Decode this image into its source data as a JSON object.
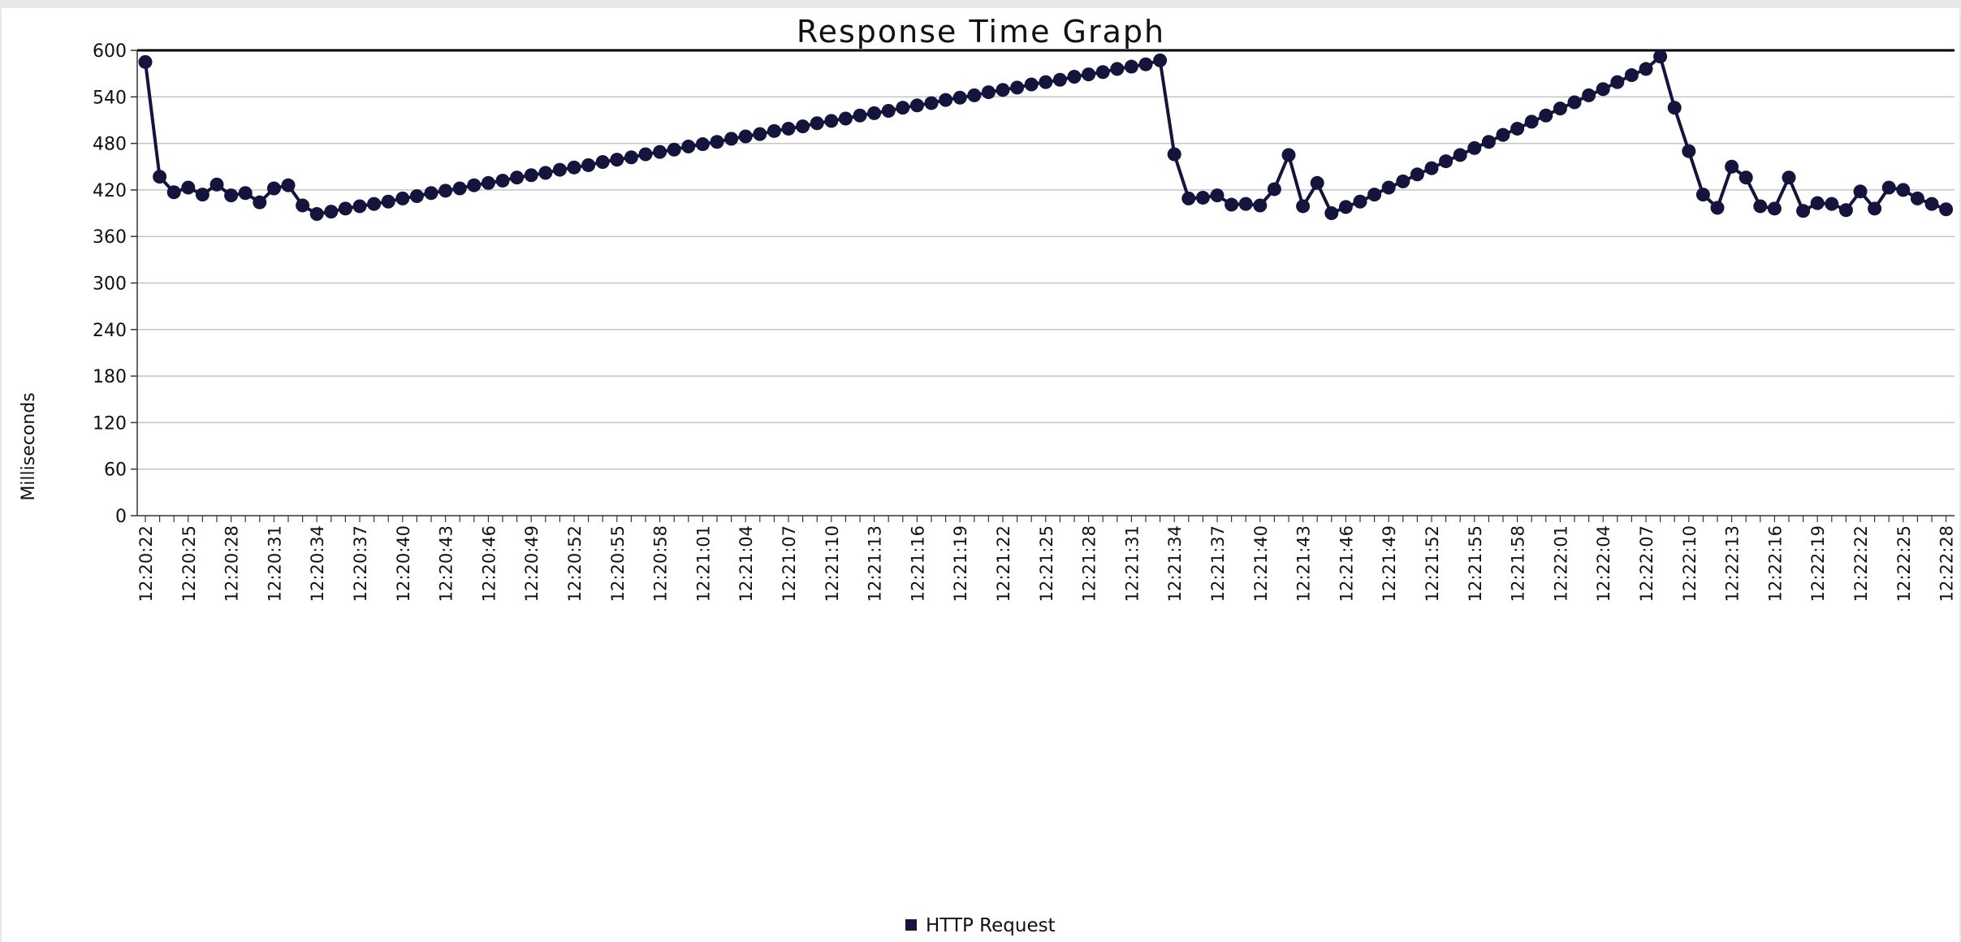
{
  "chart_data": {
    "type": "line",
    "title": "Response Time Graph",
    "ylabel": "Milliseconds",
    "xlabel": "",
    "ylim": [
      0,
      600
    ],
    "yticks": [
      0,
      60,
      120,
      180,
      240,
      300,
      360,
      420,
      480,
      540,
      600
    ],
    "grid": true,
    "legend_placement": "bottom-center",
    "x": [
      "12:20:22",
      "12:20:23",
      "12:20:24",
      "12:20:25",
      "12:20:26",
      "12:20:27",
      "12:20:28",
      "12:20:29",
      "12:20:30",
      "12:20:31",
      "12:20:32",
      "12:20:33",
      "12:20:34",
      "12:20:35",
      "12:20:36",
      "12:20:37",
      "12:20:38",
      "12:20:39",
      "12:20:40",
      "12:20:41",
      "12:20:42",
      "12:20:43",
      "12:20:44",
      "12:20:45",
      "12:20:46",
      "12:20:47",
      "12:20:48",
      "12:20:49",
      "12:20:50",
      "12:20:51",
      "12:20:52",
      "12:20:53",
      "12:20:54",
      "12:20:55",
      "12:20:56",
      "12:20:57",
      "12:20:58",
      "12:20:59",
      "12:21:00",
      "12:21:01",
      "12:21:02",
      "12:21:03",
      "12:21:04",
      "12:21:05",
      "12:21:06",
      "12:21:07",
      "12:21:08",
      "12:21:09",
      "12:21:10",
      "12:21:11",
      "12:21:12",
      "12:21:13",
      "12:21:14",
      "12:21:15",
      "12:21:16",
      "12:21:17",
      "12:21:18",
      "12:21:19",
      "12:21:20",
      "12:21:21",
      "12:21:22",
      "12:21:23",
      "12:21:24",
      "12:21:25",
      "12:21:26",
      "12:21:27",
      "12:21:28",
      "12:21:29",
      "12:21:30",
      "12:21:31",
      "12:21:32",
      "12:21:33",
      "12:21:34",
      "12:21:35",
      "12:21:36",
      "12:21:37",
      "12:21:38",
      "12:21:39",
      "12:21:40",
      "12:21:41",
      "12:21:42",
      "12:21:43",
      "12:21:44",
      "12:21:45",
      "12:21:46",
      "12:21:47",
      "12:21:48",
      "12:21:49",
      "12:21:50",
      "12:21:51",
      "12:21:52",
      "12:21:53",
      "12:21:54",
      "12:21:55",
      "12:21:56",
      "12:21:57",
      "12:21:58",
      "12:21:59",
      "12:22:00",
      "12:22:01",
      "12:22:02",
      "12:22:03",
      "12:22:04",
      "12:22:05",
      "12:22:06",
      "12:22:07",
      "12:22:08",
      "12:22:09",
      "12:22:10",
      "12:22:11",
      "12:22:12",
      "12:22:13",
      "12:22:14",
      "12:22:15",
      "12:22:16",
      "12:22:17",
      "12:22:18",
      "12:22:19",
      "12:22:20",
      "12:22:21",
      "12:22:22",
      "12:22:23",
      "12:22:24",
      "12:22:25",
      "12:22:26",
      "12:22:27",
      "12:22:28"
    ],
    "series": [
      {
        "name": "HTTP Request",
        "color": "#14143c",
        "values": [
          585,
          437,
          417,
          423,
          414,
          427,
          413,
          416,
          404,
          422,
          426,
          400,
          389,
          392,
          396,
          399,
          402,
          405,
          409,
          412,
          416,
          419,
          422,
          426,
          429,
          432,
          436,
          439,
          442,
          446,
          449,
          452,
          456,
          459,
          462,
          466,
          469,
          472,
          476,
          479,
          482,
          486,
          489,
          492,
          496,
          499,
          502,
          506,
          509,
          512,
          516,
          519,
          522,
          526,
          529,
          532,
          536,
          539,
          542,
          546,
          549,
          552,
          556,
          559,
          562,
          566,
          569,
          572,
          576,
          579,
          582,
          587,
          466,
          409,
          410,
          413,
          401,
          402,
          400,
          421,
          465,
          399,
          429,
          390,
          398,
          405,
          414,
          423,
          431,
          440,
          448,
          457,
          465,
          474,
          482,
          491,
          499,
          508,
          516,
          525,
          533,
          542,
          550,
          559,
          568,
          576,
          592,
          526,
          470,
          414,
          397,
          450,
          436,
          399,
          396,
          436,
          393,
          403,
          402,
          394,
          418,
          396,
          423,
          420,
          409,
          402,
          395
        ]
      }
    ]
  }
}
